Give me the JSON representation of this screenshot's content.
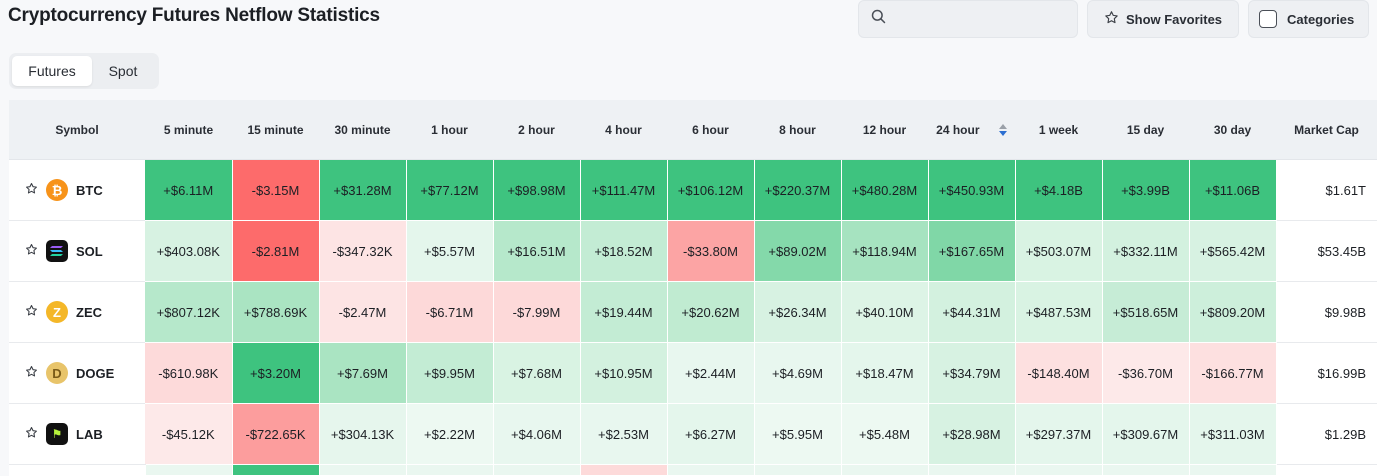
{
  "title": "Cryptocurrency Futures Netflow Statistics",
  "search": {
    "placeholder": "",
    "icon": "search-icon"
  },
  "toolbar": {
    "favorites_label": "Show Favorites",
    "categories_label": "Categories"
  },
  "tabs": [
    {
      "label": "Futures",
      "active": true
    },
    {
      "label": "Spot",
      "active": false
    }
  ],
  "table": {
    "columns": [
      "Symbol",
      "5 minute",
      "15 minute",
      "30 minute",
      "1 hour",
      "2 hour",
      "4 hour",
      "6 hour",
      "8 hour",
      "12 hour",
      "24 hour",
      "1 week",
      "15 day",
      "30 day",
      "Market Cap"
    ],
    "sorted_column": "24 hour",
    "sort_direction": "descending",
    "rows": [
      {
        "symbol": "BTC",
        "icon": "bitcoin-icon",
        "values": [
          "+$6.11M",
          "-$3.15M",
          "+$31.28M",
          "+$77.12M",
          "+$98.98M",
          "+$111.47M",
          "+$106.12M",
          "+$220.37M",
          "+$480.28M",
          "+$450.93M",
          "+$4.18B",
          "+$3.99B",
          "+$11.06B"
        ],
        "market_cap": "$1.61T",
        "colors": [
          "#3ec37f",
          "#fd6b6b",
          "#3ec37f",
          "#3ec37f",
          "#3ec37f",
          "#3ec37f",
          "#3ec37f",
          "#3ec37f",
          "#3ec37f",
          "#3ec37f",
          "#3ec37f",
          "#3ec37f",
          "#3ec37f"
        ]
      },
      {
        "symbol": "SOL",
        "icon": "solana-icon",
        "values": [
          "+$403.08K",
          "-$2.81M",
          "-$347.32K",
          "+$5.57M",
          "+$16.51M",
          "+$18.52M",
          "-$33.80M",
          "+$89.02M",
          "+$118.94M",
          "+$167.65M",
          "+$503.07M",
          "+$332.11M",
          "+$565.42M"
        ],
        "market_cap": "$53.45B",
        "colors": [
          "#d7f2e2",
          "#fd6b6b",
          "#fde4e4",
          "#e4f6ec",
          "#b6e8cb",
          "#c3ecd4",
          "#fca4a4",
          "#84d9aa",
          "#a6e3c0",
          "#80d7a7",
          "#d9f3e3",
          "#d3f1df",
          "#d7f2e2"
        ]
      },
      {
        "symbol": "ZEC",
        "icon": "zcash-icon",
        "values": [
          "+$807.12K",
          "+$788.69K",
          "-$2.47M",
          "-$6.71M",
          "-$7.99M",
          "+$19.44M",
          "+$20.62M",
          "+$26.34M",
          "+$40.10M",
          "+$44.31M",
          "+$487.53M",
          "+$518.65M",
          "+$809.20M"
        ],
        "market_cap": "$9.98B",
        "colors": [
          "#b6e8cb",
          "#aae4c2",
          "#fde4e4",
          "#fdd9d9",
          "#fdd9d9",
          "#c3ecd4",
          "#c0ebd1",
          "#d7f2e2",
          "#ddf4e6",
          "#d3f1df",
          "#d9f3e3",
          "#c6ecd6",
          "#cdefdb"
        ]
      },
      {
        "symbol": "DOGE",
        "icon": "dogecoin-icon",
        "values": [
          "-$610.98K",
          "+$3.20M",
          "+$7.69M",
          "+$9.95M",
          "+$7.68M",
          "+$10.95M",
          "+$2.44M",
          "+$4.69M",
          "+$18.47M",
          "+$34.79M",
          "-$148.40M",
          "-$36.70M",
          "-$166.77M"
        ],
        "market_cap": "$16.99B",
        "colors": [
          "#fddada",
          "#3ec37f",
          "#aae4c2",
          "#c3ecd4",
          "#d9f3e3",
          "#d3f1df",
          "#e8f7ef",
          "#e8f7ef",
          "#e4f6ec",
          "#d7f2e2",
          "#fde0e0",
          "#fde9e9",
          "#fde0e0"
        ]
      },
      {
        "symbol": "LAB",
        "icon": "lab-token-icon",
        "values": [
          "-$45.12K",
          "-$722.65K",
          "+$304.13K",
          "+$2.22M",
          "+$4.06M",
          "+$2.53M",
          "+$6.27M",
          "+$5.95M",
          "+$5.48M",
          "+$28.98M",
          "+$297.37M",
          "+$309.67M",
          "+$311.03M"
        ],
        "market_cap": "$1.29B",
        "colors": [
          "#fde9e9",
          "#fc9d9d",
          "#e6f6ed",
          "#edf9f2",
          "#e8f7ef",
          "#e8f7ef",
          "#e4f6ec",
          "#edf9f2",
          "#edf9f2",
          "#d7f2e2",
          "#e4f6ec",
          "#e4f6ec",
          "#e4f6ec"
        ]
      }
    ]
  },
  "partial_row_colors": [
    "#ffffff",
    "#eaf7f0",
    "#3ec37f",
    "#eaf7f0",
    "#eaf7f0",
    "#eaf7f0",
    "#fddada",
    "#eaf7f0",
    "#eaf7f0",
    "#eaf7f0",
    "#eaf7f0",
    "#eaf7f0",
    "#eaf7f0",
    "#eaf7f0",
    "#ffffff"
  ]
}
